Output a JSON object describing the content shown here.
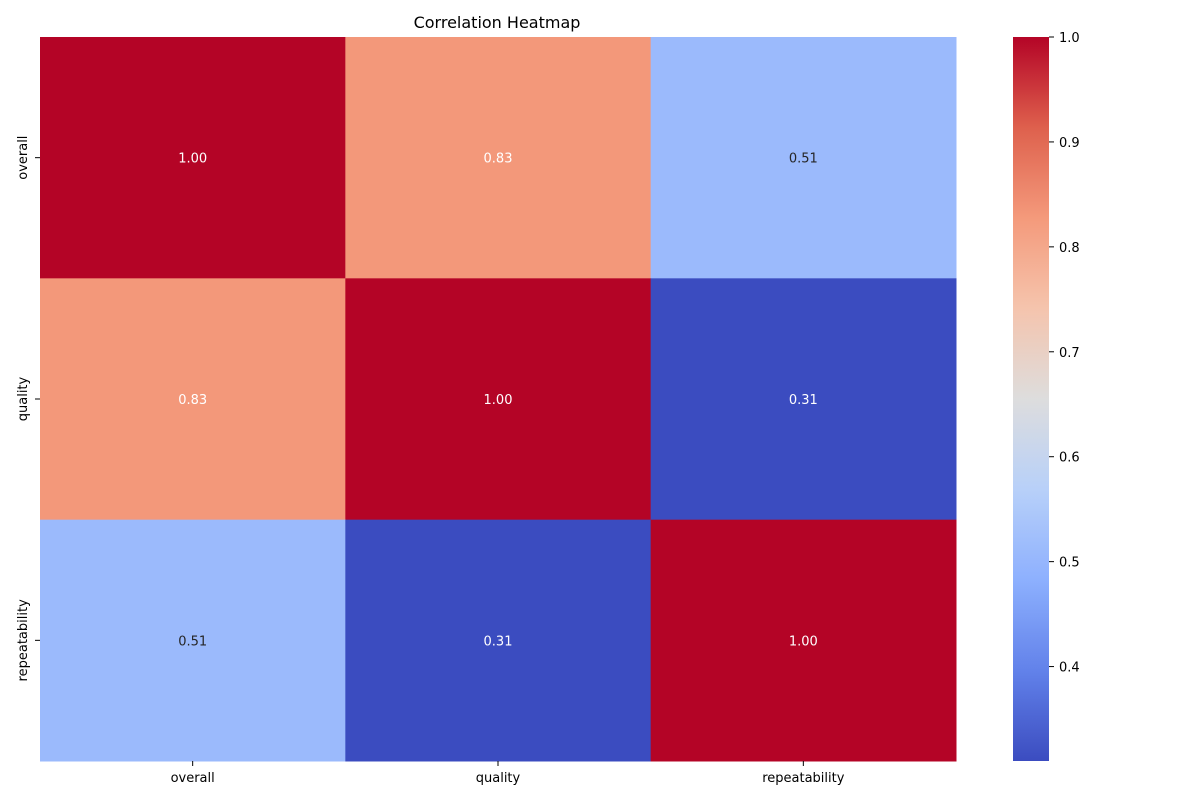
{
  "chart_data": {
    "type": "heatmap",
    "title": "Correlation Heatmap",
    "x_categories": [
      "overall",
      "quality",
      "repeatability"
    ],
    "y_categories": [
      "overall",
      "quality",
      "repeatability"
    ],
    "values": [
      [
        1.0,
        0.83,
        0.51
      ],
      [
        0.83,
        1.0,
        0.31
      ],
      [
        0.51,
        0.31,
        1.0
      ]
    ],
    "value_labels": [
      [
        "1.00",
        "0.83",
        "0.51"
      ],
      [
        "0.83",
        "1.00",
        "0.31"
      ],
      [
        "0.51",
        "0.31",
        "1.00"
      ]
    ],
    "colormap": "coolwarm",
    "colorbar": {
      "range": [
        0.31,
        1.0
      ],
      "ticks": [
        0.4,
        0.5,
        0.6,
        0.7,
        0.8,
        0.9,
        1.0
      ],
      "tick_labels": [
        "0.4",
        "0.5",
        "0.6",
        "0.7",
        "0.8",
        "0.9",
        "1.0"
      ]
    },
    "xlabel": "",
    "ylabel": "",
    "legend": "colorbar-right"
  }
}
